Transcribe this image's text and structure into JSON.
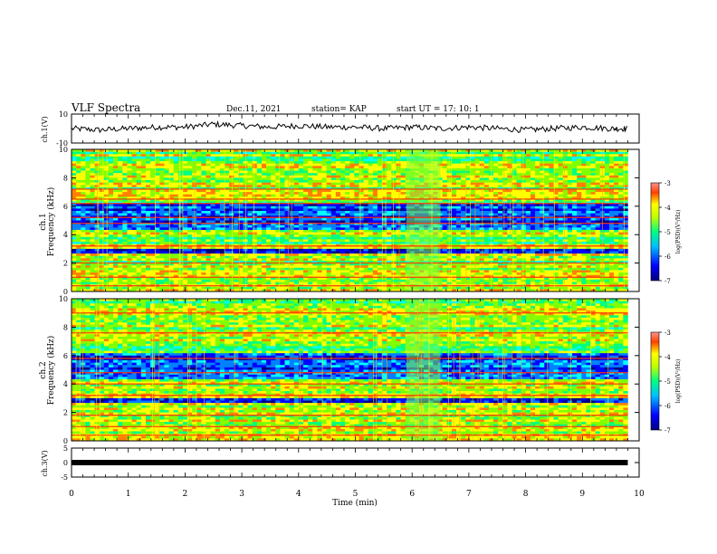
{
  "header": {
    "title": "VLF Spectra",
    "date": "Dec.11, 2021",
    "station": "station= KAP",
    "start": "start  UT =   17: 10: 1"
  },
  "colors": {
    "background": "#ffffff",
    "trace": "#000000",
    "colormap": [
      "#000080",
      "#0000ff",
      "#0080ff",
      "#00ffff",
      "#00ff80",
      "#80ff00",
      "#ffff00",
      "#ff8000",
      "#ff0000",
      "#ff4040"
    ]
  },
  "chart_data": [
    {
      "type": "line",
      "panel": "ch1-waveform",
      "ylabel": "ch.1(V)",
      "ylim": [
        -10,
        10
      ],
      "yticks": [
        "10",
        "-10"
      ],
      "xlim": [
        0,
        10
      ],
      "x": [
        0,
        0.5,
        1,
        1.5,
        2,
        2.5,
        3,
        3.5,
        4,
        4.5,
        5,
        5.5,
        6,
        6.5,
        7,
        7.5,
        8,
        8.5,
        9,
        9.5,
        9.8
      ],
      "y": [
        0,
        -1,
        0,
        1,
        1,
        3,
        2,
        1,
        2,
        1,
        1,
        0,
        1,
        0,
        1,
        0,
        -1,
        0,
        1,
        0,
        0
      ]
    },
    {
      "type": "heatmap",
      "panel": "ch1-spectrogram",
      "ylabel": "ch.1\nFrequency (kHz)",
      "ylim": [
        0,
        10
      ],
      "yticks": [
        "0",
        "2",
        "4",
        "6",
        "8",
        "10"
      ],
      "xlim": [
        0,
        10
      ],
      "colorbar": {
        "label": "log(PSD)(V²/Hz)",
        "range": [
          -7,
          -3
        ],
        "ticks": [
          "-3",
          "-4",
          "-5",
          "-6",
          "-7"
        ]
      },
      "bands_khz": [
        0.4,
        1.0,
        2.0,
        3.2,
        4.8,
        5.2,
        6.2,
        6.5,
        7.2
      ],
      "interference_x_min": [
        5.9,
        6.5
      ]
    },
    {
      "type": "heatmap",
      "panel": "ch2-spectrogram",
      "ylabel": "ch.2\nFrequency (kHz)",
      "ylim": [
        0,
        10
      ],
      "yticks": [
        "0",
        "2",
        "4",
        "6",
        "8",
        "10"
      ],
      "xlim": [
        0,
        10
      ],
      "colorbar": {
        "label": "log(PSD)(V²/Hz)",
        "range": [
          -7,
          -3
        ],
        "ticks": [
          "-3",
          "-4",
          "-5",
          "-6",
          "-7"
        ]
      },
      "bands_khz": [
        0.4,
        1.0,
        1.8,
        3.2,
        4.0,
        4.8,
        5.8,
        7.6,
        9.0
      ],
      "interference_x_min": [
        5.9,
        6.5
      ]
    },
    {
      "type": "line",
      "panel": "ch3-waveform",
      "ylabel": "ch.3(V)",
      "ylim": [
        -5,
        5
      ],
      "yticks": [
        "5",
        "0",
        "-5"
      ],
      "xlim": [
        0,
        10
      ],
      "x": [
        0,
        9.8
      ],
      "y": [
        0,
        0
      ]
    }
  ],
  "xaxis": {
    "label": "Time (min)",
    "ticks": [
      "0",
      "1",
      "2",
      "3",
      "4",
      "5",
      "6",
      "7",
      "8",
      "9",
      "10"
    ]
  }
}
